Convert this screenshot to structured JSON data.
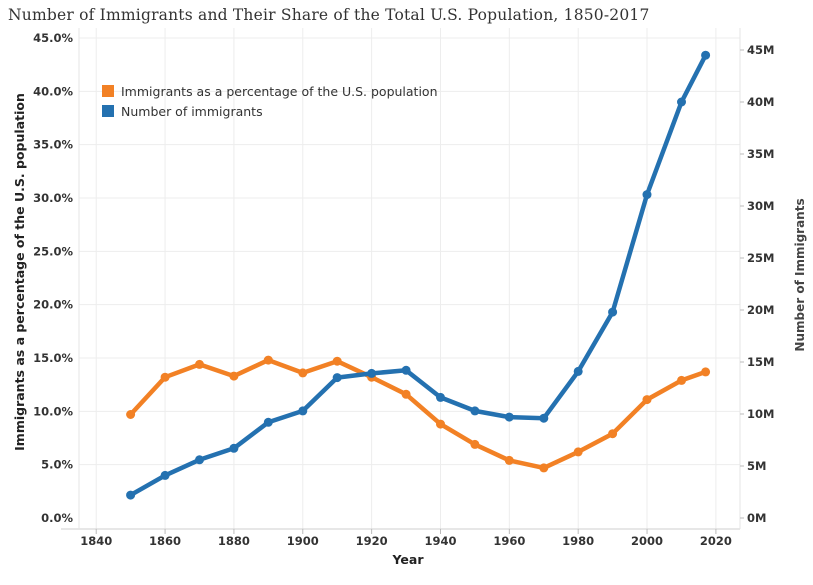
{
  "page": {
    "title": "Number of Immigrants and Their Share of the Total U.S. Population, 1850-2017"
  },
  "chart_data": {
    "type": "line",
    "title": "Number of Immigrants and Their Share of the Total U.S. Population, 1850-2017",
    "xlabel": "Year",
    "ylabel_left": "Immigrants as a percentage of the U.S. population",
    "ylabel_right": "Number of Immigrants",
    "xlim": [
      1835,
      2027
    ],
    "ylim_left": [
      0,
      45
    ],
    "ylim_right": [
      0,
      47.5
    ],
    "x_ticks": [
      "1840",
      "1860",
      "1880",
      "1900",
      "1920",
      "1940",
      "1960",
      "1980",
      "2000",
      "2020"
    ],
    "y_left_ticks": [
      "0.0%",
      "5.0%",
      "10.0%",
      "15.0%",
      "20.0%",
      "25.0%",
      "30.0%",
      "35.0%",
      "40.0%",
      "45.0%"
    ],
    "y_right_ticks": [
      "0M",
      "5M",
      "10M",
      "15M",
      "20M",
      "25M",
      "30M",
      "35M",
      "40M",
      "45M"
    ],
    "grid": true,
    "legend_position": "top-left",
    "legend": [
      {
        "label": "Immigrants as a percentage of the U.S. population",
        "color": "#f28125"
      },
      {
        "label": "Number of immigrants",
        "color": "#2471b0"
      }
    ],
    "series": [
      {
        "name": "Immigrants as a percentage of the U.S. population",
        "axis": "left",
        "unit": "%",
        "color": "#f28125",
        "x": [
          1850,
          1860,
          1870,
          1880,
          1890,
          1900,
          1910,
          1920,
          1930,
          1940,
          1950,
          1960,
          1970,
          1980,
          1990,
          2000,
          2010,
          2017
        ],
        "values": [
          9.7,
          13.2,
          14.4,
          13.3,
          14.8,
          13.6,
          14.7,
          13.2,
          11.6,
          8.8,
          6.9,
          5.4,
          4.7,
          6.2,
          7.9,
          11.1,
          12.9,
          13.7
        ]
      },
      {
        "name": "Number of immigrants",
        "axis": "right",
        "unit": "M",
        "color": "#2471b0",
        "x": [
          1850,
          1860,
          1870,
          1880,
          1890,
          1900,
          1910,
          1920,
          1930,
          1940,
          1950,
          1960,
          1970,
          1980,
          1990,
          2000,
          2010,
          2017
        ],
        "values": [
          2.2,
          4.1,
          5.6,
          6.7,
          9.2,
          10.3,
          13.5,
          13.9,
          14.2,
          11.6,
          10.3,
          9.7,
          9.6,
          14.1,
          19.8,
          31.1,
          40.0,
          44.5
        ]
      }
    ]
  }
}
